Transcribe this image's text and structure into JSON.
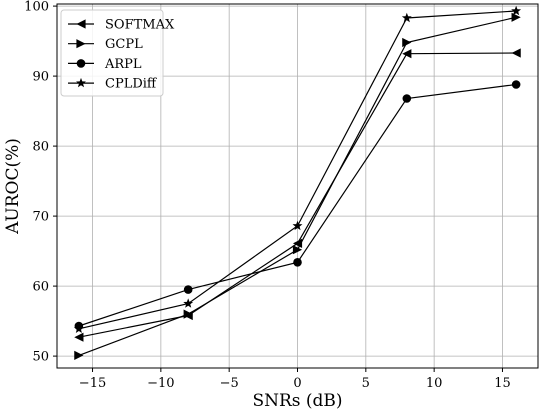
{
  "chart_data": {
    "type": "line",
    "title": "",
    "xlabel": "SNRs (dB)",
    "ylabel": "AUROC(%)",
    "xlim": [
      -17.6,
      17.6
    ],
    "ylim": [
      48.3,
      100.3
    ],
    "xticks": [
      -15,
      -10,
      -5,
      0,
      5,
      10,
      15
    ],
    "xtick_labels": [
      "−15",
      "−10",
      "−5",
      "0",
      "5",
      "10",
      "15"
    ],
    "yticks": [
      50,
      60,
      70,
      80,
      90,
      100
    ],
    "ytick_labels": [
      "50",
      "60",
      "70",
      "80",
      "90",
      "100"
    ],
    "grid": true,
    "legend_position": "top-left",
    "x": [
      -16,
      -8,
      0,
      8,
      16
    ],
    "series": [
      {
        "name": "SOFTMAX",
        "marker": "triangle-left",
        "color": "#000000",
        "values": [
          52.7,
          55.8,
          66.1,
          93.2,
          93.3
        ]
      },
      {
        "name": "GCPL",
        "marker": "triangle-right",
        "color": "#000000",
        "values": [
          50.1,
          56.0,
          65.2,
          94.8,
          98.4
        ]
      },
      {
        "name": "ARPL",
        "marker": "circle",
        "color": "#000000",
        "values": [
          54.3,
          59.5,
          63.4,
          86.8,
          88.8
        ]
      },
      {
        "name": "CPLDiff",
        "marker": "star",
        "color": "#000000",
        "values": [
          53.9,
          57.5,
          68.6,
          98.3,
          99.3
        ]
      }
    ]
  }
}
